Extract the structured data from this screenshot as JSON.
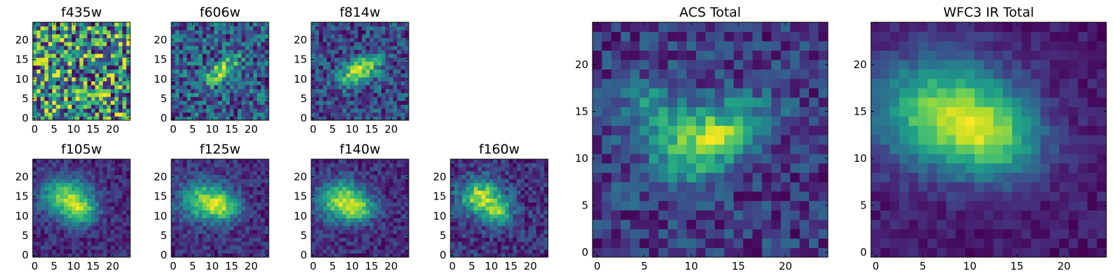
{
  "chart_data": [
    {
      "type": "heatmap",
      "title": "f435w",
      "colormap": "viridis",
      "grid": false,
      "xlim": [
        -0.5,
        24.5
      ],
      "ylim": [
        -0.5,
        24.5
      ],
      "xticks": [
        "0",
        "5",
        "10",
        "15",
        "20"
      ],
      "yticks": [
        "0",
        "5",
        "10",
        "15",
        "20"
      ],
      "features": {
        "noise": 1.0,
        "blobs": []
      }
    },
    {
      "type": "heatmap",
      "title": "f606w",
      "colormap": "viridis",
      "grid": false,
      "xlim": [
        -0.5,
        24.5
      ],
      "ylim": [
        -0.5,
        24.5
      ],
      "xticks": [
        "0",
        "5",
        "10",
        "15",
        "20"
      ],
      "yticks": [
        "0",
        "5",
        "10",
        "15",
        "20"
      ],
      "features": {
        "noise": 0.7,
        "blobs": [
          {
            "x": 12,
            "y": 12,
            "amp": 0.6,
            "sx": 4.0,
            "sy": 1.5,
            "angle": 35
          }
        ]
      }
    },
    {
      "type": "heatmap",
      "title": "f814w",
      "colormap": "viridis",
      "grid": false,
      "xlim": [
        -0.5,
        24.5
      ],
      "ylim": [
        -0.5,
        24.5
      ],
      "xticks": [
        "0",
        "5",
        "10",
        "15",
        "20"
      ],
      "yticks": [
        "0",
        "5",
        "10",
        "15",
        "20"
      ],
      "features": {
        "noise": 0.55,
        "blobs": [
          {
            "x": 12,
            "y": 12,
            "amp": 0.8,
            "sx": 4.0,
            "sy": 2.0,
            "angle": 30
          }
        ]
      }
    },
    {
      "type": "heatmap",
      "title": "f105w",
      "colormap": "viridis",
      "grid": false,
      "xlim": [
        -0.5,
        24.5
      ],
      "ylim": [
        -0.5,
        24.5
      ],
      "xticks": [
        "0",
        "5",
        "10",
        "15",
        "20"
      ],
      "yticks": [
        "0",
        "5",
        "10",
        "15",
        "20"
      ],
      "features": {
        "noise": 0.3,
        "blobs": [
          {
            "x": 8,
            "y": 15,
            "amp": 0.8,
            "sx": 4.5,
            "sy": 3.5,
            "angle": 0
          },
          {
            "x": 12,
            "y": 11,
            "amp": 0.6,
            "sx": 3.0,
            "sy": 2.5,
            "angle": 0
          }
        ]
      }
    },
    {
      "type": "heatmap",
      "title": "f125w",
      "colormap": "viridis",
      "grid": false,
      "xlim": [
        -0.5,
        24.5
      ],
      "ylim": [
        -0.5,
        24.5
      ],
      "xticks": [
        "0",
        "5",
        "10",
        "15",
        "20"
      ],
      "yticks": [
        "0",
        "5",
        "10",
        "15",
        "20"
      ],
      "features": {
        "noise": 0.32,
        "blobs": [
          {
            "x": 8,
            "y": 14,
            "amp": 0.75,
            "sx": 4.5,
            "sy": 3.5,
            "angle": 0
          },
          {
            "x": 13,
            "y": 12,
            "amp": 0.55,
            "sx": 3.0,
            "sy": 2.5,
            "angle": 0
          }
        ]
      }
    },
    {
      "type": "heatmap",
      "title": "f140w",
      "colormap": "viridis",
      "grid": false,
      "xlim": [
        -0.5,
        24.5
      ],
      "ylim": [
        -0.5,
        24.5
      ],
      "xticks": [
        "0",
        "5",
        "10",
        "15",
        "20"
      ],
      "yticks": [
        "0",
        "5",
        "10",
        "15",
        "20"
      ],
      "features": {
        "noise": 0.32,
        "blobs": [
          {
            "x": 7,
            "y": 14,
            "amp": 0.8,
            "sx": 4.0,
            "sy": 3.5,
            "angle": 0
          },
          {
            "x": 12,
            "y": 12,
            "amp": 0.55,
            "sx": 3.0,
            "sy": 2.5,
            "angle": 0
          }
        ]
      }
    },
    {
      "type": "heatmap",
      "title": "f160w",
      "colormap": "viridis",
      "grid": false,
      "xlim": [
        -0.5,
        24.5
      ],
      "ylim": [
        -0.5,
        24.5
      ],
      "xticks": [
        "0",
        "5",
        "10",
        "15",
        "20"
      ],
      "yticks": [
        "0",
        "5",
        "10",
        "15",
        "20"
      ],
      "features": {
        "noise": 0.35,
        "blobs": [
          {
            "x": 7,
            "y": 15,
            "amp": 0.8,
            "sx": 3.5,
            "sy": 3.0,
            "angle": 0
          },
          {
            "x": 12,
            "y": 11,
            "amp": 0.6,
            "sx": 2.5,
            "sy": 2.5,
            "angle": 0
          }
        ]
      }
    },
    {
      "type": "heatmap",
      "title": "ACS Total",
      "colormap": "viridis",
      "grid": false,
      "xlim": [
        -0.5,
        24.5
      ],
      "ylim": [
        -0.5,
        24.5
      ],
      "xticks": [
        "0",
        "5",
        "10",
        "15",
        "20"
      ],
      "yticks": [
        "0",
        "5",
        "10",
        "15",
        "20"
      ],
      "features": {
        "noise": 0.38,
        "blobs": [
          {
            "x": 12,
            "y": 12,
            "amp": 0.75,
            "sx": 4.5,
            "sy": 2.2,
            "angle": 30
          },
          {
            "x": 6,
            "y": 15,
            "amp": 0.35,
            "sx": 3.0,
            "sy": 2.5,
            "angle": 0
          }
        ]
      }
    },
    {
      "type": "heatmap",
      "title": "WFC3 IR Total",
      "colormap": "viridis",
      "grid": false,
      "xlim": [
        -0.5,
        24.5
      ],
      "ylim": [
        -0.5,
        24.5
      ],
      "xticks": [
        "0",
        "5",
        "10",
        "15",
        "20"
      ],
      "yticks": [
        "0",
        "5",
        "10",
        "15",
        "20"
      ],
      "features": {
        "noise": 0.18,
        "blobs": [
          {
            "x": 7,
            "y": 15,
            "amp": 0.85,
            "sx": 5.0,
            "sy": 4.0,
            "angle": 0
          },
          {
            "x": 13,
            "y": 12,
            "amp": 0.6,
            "sx": 3.5,
            "sy": 3.0,
            "angle": 0
          }
        ]
      }
    }
  ]
}
